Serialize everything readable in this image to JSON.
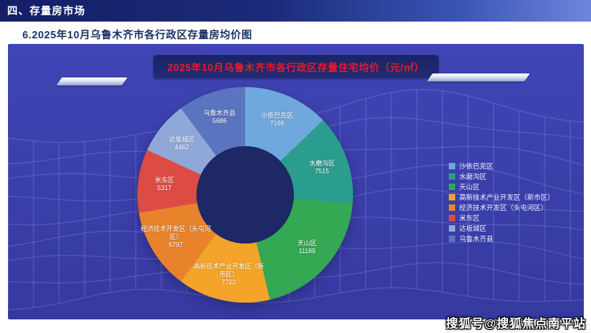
{
  "header": {
    "section_title": "四、存量房市场"
  },
  "subtitle": "6.2025年10月乌鲁木齐市各行政区存量房均价图",
  "panel": {
    "chart_title": "2025年10月乌鲁木齐市各行政区存量住宅均价（元/㎡）"
  },
  "watermark": "搜狐号@搜狐焦点南平站",
  "colors": {
    "header_bg_left": "#141f66",
    "header_bg_right": "#6d86dd",
    "panel_bg": "#3a3ea8",
    "title_pill_bg": "#1a2364",
    "title_text": "#e8192c",
    "donut_hole": "#1e2867",
    "label_text": "#ffffff"
  },
  "chart_data": {
    "type": "pie",
    "subtype": "donut",
    "title": "2025年10月乌鲁木齐市各行政区存量住宅均价（元/㎡）",
    "unit": "元/㎡",
    "legend_position": "right",
    "segments": [
      {
        "label": "沙依巴克区",
        "value": 7166,
        "color": "#6fa8dc"
      },
      {
        "label": "水磨沟区",
        "value": 7515,
        "color": "#2a9d8f"
      },
      {
        "label": "天山区",
        "value": 11189,
        "color": "#34a853"
      },
      {
        "label": "高新技术产业开发区（新市区）",
        "value": 7722,
        "color": "#f4a428"
      },
      {
        "label": "经济技术开发区（头屯河区）",
        "value": 6797,
        "color": "#e8832c"
      },
      {
        "label": "米东区",
        "value": 5317,
        "color": "#dd4b43"
      },
      {
        "label": "达坂城区",
        "value": 4462,
        "color": "#8fa8d8"
      },
      {
        "label": "乌鲁木齐县",
        "value": 5686,
        "color": "#5b74c0"
      }
    ]
  }
}
